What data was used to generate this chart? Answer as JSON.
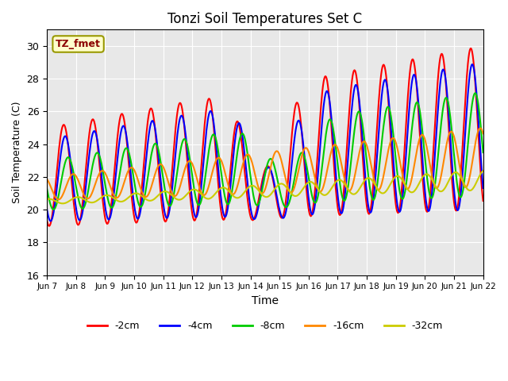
{
  "title": "Tonzi Soil Temperatures Set C",
  "xlabel": "Time",
  "ylabel": "Soil Temperature (C)",
  "ylim": [
    16,
    31
  ],
  "yticks": [
    16,
    18,
    20,
    22,
    24,
    26,
    28,
    30
  ],
  "x_labels": [
    "Jun 7",
    "Jun 8",
    "Jun 9",
    "Jun 10",
    "Jun 11",
    "Jun 12",
    "Jun 13",
    "Jun 14",
    "Jun 15",
    "Jun 16",
    "Jun 17",
    "Jun 18",
    "Jun 19",
    "Jun 20",
    "Jun 21",
    "Jun 22"
  ],
  "annotation_text": "TZ_fmet",
  "colors": {
    "-2cm": "#ff0000",
    "-4cm": "#0000ff",
    "-8cm": "#00cc00",
    "-16cm": "#ff8800",
    "-32cm": "#cccc00"
  },
  "legend_labels": [
    "-2cm",
    "-4cm",
    "-8cm",
    "-16cm",
    "-32cm"
  ],
  "bg_color": "#e8e8e8",
  "title_fontsize": 12,
  "n_days": 15,
  "pts_per_day": 48
}
